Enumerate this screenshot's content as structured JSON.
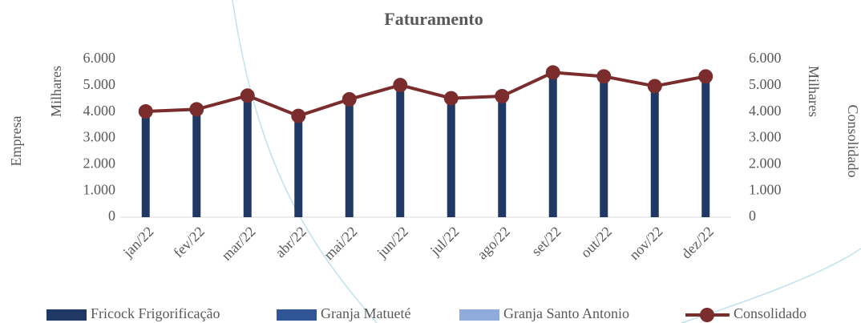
{
  "chart_data": {
    "type": "bar",
    "title": "Faturamento",
    "categories": [
      "jan/22",
      "fev/22",
      "mar/22",
      "abr/22",
      "mai/22",
      "jun/22",
      "jul/22",
      "ago/22",
      "set/22",
      "out/22",
      "nov/22",
      "dez/22"
    ],
    "series": [
      {
        "name": "Fricock Frigorificação",
        "color": "#1f3864",
        "values": [
          4000,
          4100,
          4600,
          3850,
          4450,
          4950,
          4550,
          4600,
          5500,
          5400,
          5000,
          5300
        ]
      },
      {
        "name": "Granja Matueté",
        "color": "#2f5597",
        "values": [
          0,
          0,
          0,
          0,
          0,
          0,
          0,
          0,
          0,
          0,
          0,
          0
        ]
      },
      {
        "name": "Granja Santo Antonio",
        "color": "#8faadc",
        "values": [
          0,
          0,
          0,
          0,
          0,
          0,
          0,
          0,
          0,
          0,
          0,
          0
        ]
      },
      {
        "name": "Consolidado",
        "color": "#7b2c2c",
        "type": "line",
        "axis": "y2",
        "values": [
          4020,
          4100,
          4620,
          3850,
          4480,
          5020,
          4520,
          4600,
          5500,
          5350,
          4980,
          5350
        ]
      }
    ],
    "ylabel": "Empresa",
    "yunit": "Milhares",
    "y2label": "Consolidado",
    "y2unit": "Milhares",
    "ylim": [
      0,
      6000
    ],
    "yticks": [
      0,
      {
        "value": 1000,
        "label": "1.000"
      },
      {
        "value": 2000,
        "label": "2.000"
      },
      {
        "value": 3000,
        "label": "3.000"
      },
      {
        "value": 4000,
        "label": "4.000"
      },
      {
        "value": 5000,
        "label": "5.000"
      },
      {
        "value": 6000,
        "label": "6.000"
      }
    ],
    "y2lim": [
      0,
      6000
    ],
    "y2ticks": [
      0,
      {
        "value": 1000,
        "label": "1.000"
      },
      {
        "value": 2000,
        "label": "2.000"
      },
      {
        "value": 3000,
        "label": "3.000"
      },
      {
        "value": 4000,
        "label": "4.000"
      },
      {
        "value": 5000,
        "label": "5.000"
      },
      {
        "value": 6000,
        "label": "6.000"
      }
    ],
    "grid": false,
    "legend": "bottom"
  }
}
